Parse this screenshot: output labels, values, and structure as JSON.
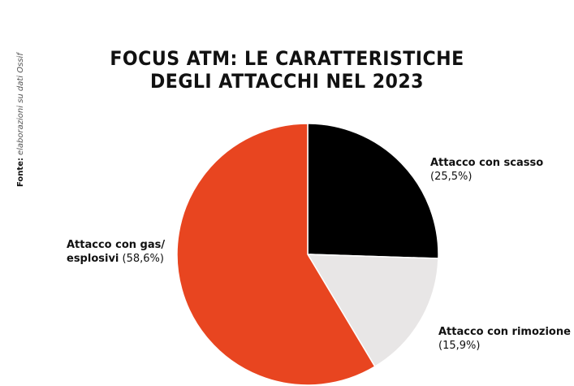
{
  "title_lines": [
    "FOCUS ATM: LE CARATTERISTICHE",
    "DEGLI ATTACCHI NEL 2023"
  ],
  "source": {
    "label": "Fonte:",
    "text": "elaborazioni su dati Ossif"
  },
  "chart_data": {
    "type": "pie",
    "title": "FOCUS ATM: LE CARATTERISTICHE DEGLI ATTACCHI NEL 2023",
    "slices": [
      {
        "label": "Attacco con scasso",
        "value": 25.5,
        "display": "(25,5%)",
        "color": "#000000"
      },
      {
        "label": "Attacco con rimozione",
        "value": 15.9,
        "display": "(15,9%)",
        "color": "#e8e6e6"
      },
      {
        "label": "Attacco con gas/ esplosivi",
        "value": 58.6,
        "display": "(58,6%)",
        "color": "#e84520"
      }
    ]
  },
  "labels": {
    "scasso": {
      "line1": "Attacco con scasso",
      "line2": "(25,5%)"
    },
    "rimozione": {
      "line1": "Attacco con rimozione",
      "line2": "(15,9%)"
    },
    "gas": {
      "line1": "Attacco con gas/",
      "line2a": "esplosivi",
      "line2b": " (58,6%)"
    }
  }
}
